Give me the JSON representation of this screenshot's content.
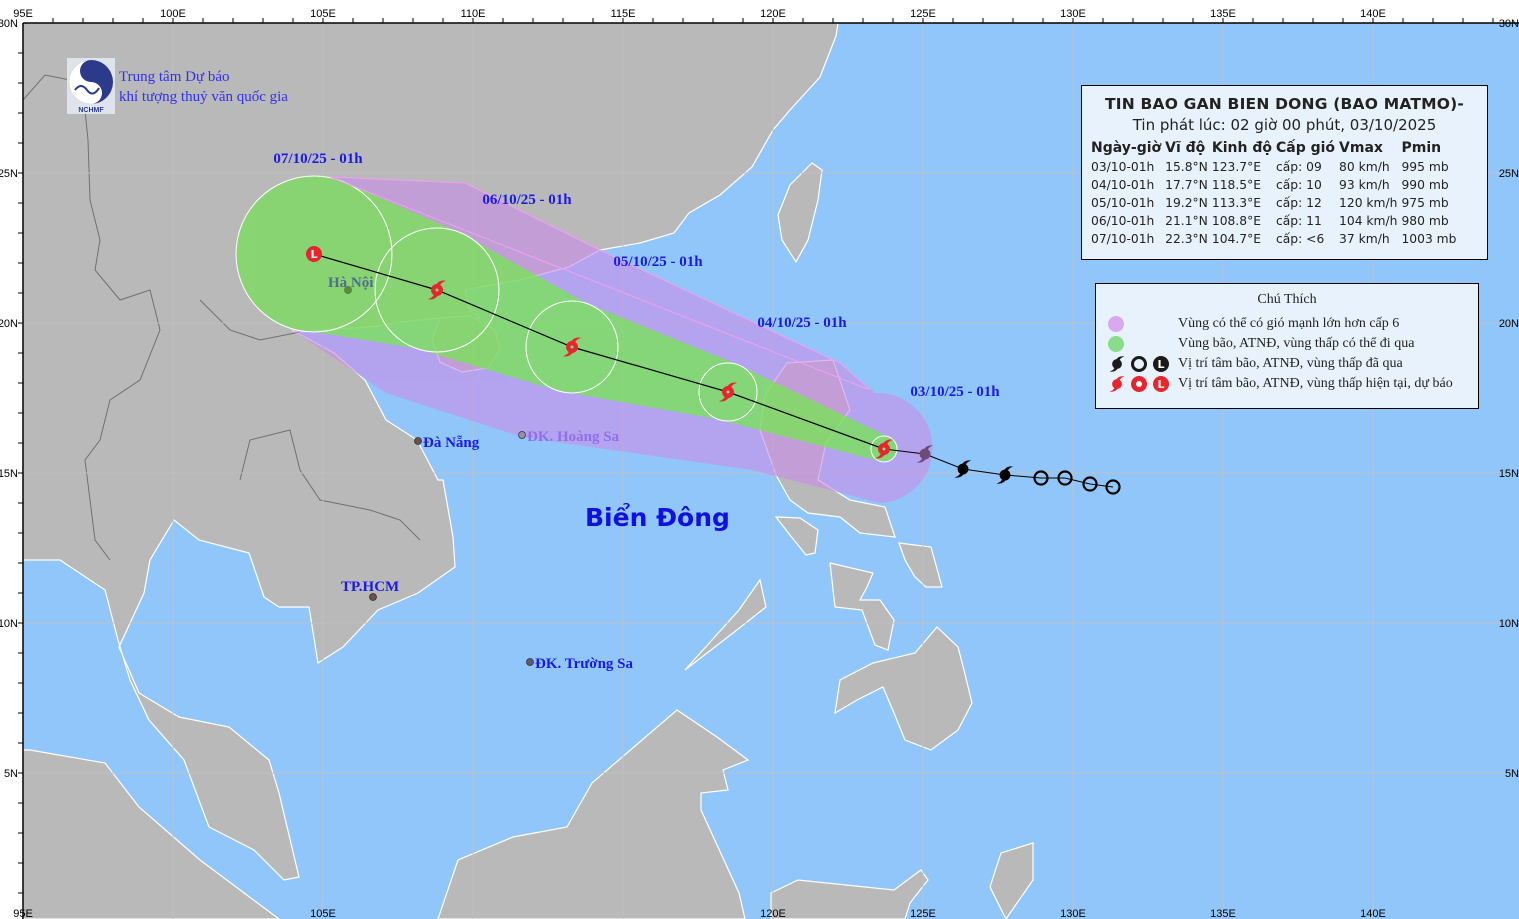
{
  "logo": {
    "name": "NCHMF",
    "line1": "Trung tâm Dự báo",
    "line2": "khí tượng thuỷ văn quốc gia"
  },
  "axes": {
    "top_lon_labels": [
      "95E",
      "100E",
      "105E",
      "110E",
      "115E",
      "120E",
      "125E",
      "130E",
      "135E",
      "140E"
    ],
    "bottom_lon_labels": [
      "95E",
      "105E",
      "120E",
      "125E",
      "130E",
      "135E",
      "140E"
    ],
    "lat_labels": [
      "30N",
      "25N",
      "20N",
      "15N",
      "10N",
      "5N"
    ]
  },
  "info": {
    "title": "TIN BAO GAN BIEN DONG (BAO MATMO)-",
    "issued": "Tin phát lúc: 02 giờ 00 phút, 03/10/2025",
    "columns": [
      "Ngày-giờ",
      "Vĩ độ",
      "Kinh độ",
      "Cấp gió",
      "Vmax",
      "Pmin"
    ],
    "rows": [
      {
        "time": "03/10-01h",
        "lat": "15.8°N",
        "lon": "123.7°E",
        "level": "cấp: 09",
        "vmax": "80 km/h",
        "pmin": "995 mb"
      },
      {
        "time": "04/10-01h",
        "lat": "17.7°N",
        "lon": "118.5°E",
        "level": "cấp: 10",
        "vmax": "93 km/h",
        "pmin": "990 mb"
      },
      {
        "time": "05/10-01h",
        "lat": "19.2°N",
        "lon": "113.3°E",
        "level": "cấp: 12",
        "vmax": "120 km/h",
        "pmin": "975 mb"
      },
      {
        "time": "06/10-01h",
        "lat": "21.1°N",
        "lon": "108.8°E",
        "level": "cấp: 11",
        "vmax": "104 km/h",
        "pmin": "980 mb"
      },
      {
        "time": "07/10-01h",
        "lat": "22.3°N",
        "lon": "104.7°E",
        "level": "cấp: <6",
        "vmax": "37 km/h",
        "pmin": "1003 mb"
      }
    ]
  },
  "legend": {
    "title": "Chú Thích",
    "items": [
      {
        "label": "Vùng có thể có gió mạnh lớn hơn cấp 6",
        "color": "#d8a8f0"
      },
      {
        "label": "Vùng bão, ATNĐ, vùng thấp có thể đi qua",
        "color": "#88dd88"
      },
      {
        "label": "Vị trí tâm bão, ATNĐ, vùng thấp đã qua",
        "color": "#1a1a1a",
        "symbol_letter": "L"
      },
      {
        "label": "Vị trí tâm bão, ATNĐ, vùng thấp hiện tại, dự báo",
        "color": "#e8242c",
        "symbol_letter": "L"
      }
    ]
  },
  "track": {
    "labels": [
      "03/10/25 - 01h",
      "04/10/25 - 01h",
      "05/10/25 - 01h",
      "06/10/25 - 01h",
      "07/10/25 - 01h"
    ],
    "points": [
      {
        "lat": 15.8,
        "lon": 123.7,
        "type": "storm"
      },
      {
        "lat": 17.7,
        "lon": 118.5,
        "type": "storm"
      },
      {
        "lat": 19.2,
        "lon": 113.3,
        "type": "storm"
      },
      {
        "lat": 21.1,
        "lon": 108.8,
        "type": "storm"
      },
      {
        "lat": 22.3,
        "lon": 104.7,
        "type": "low"
      }
    ],
    "forecast_color": "#e8242c",
    "past_color": "#000000"
  },
  "places": {
    "hanoi": "Hà Nội",
    "danang": "Đà Nẵng",
    "hoangsa": "ĐK. Hoàng Sa",
    "sea": "Biển Đông",
    "hcm": "TP.HCM",
    "truongsa": "ĐK. Trường Sa"
  },
  "colors": {
    "ocean": "#90c6fa",
    "land": "#b9b9b9",
    "wind_zone": "#b9a3ef",
    "storm_zone": "#80e080"
  }
}
